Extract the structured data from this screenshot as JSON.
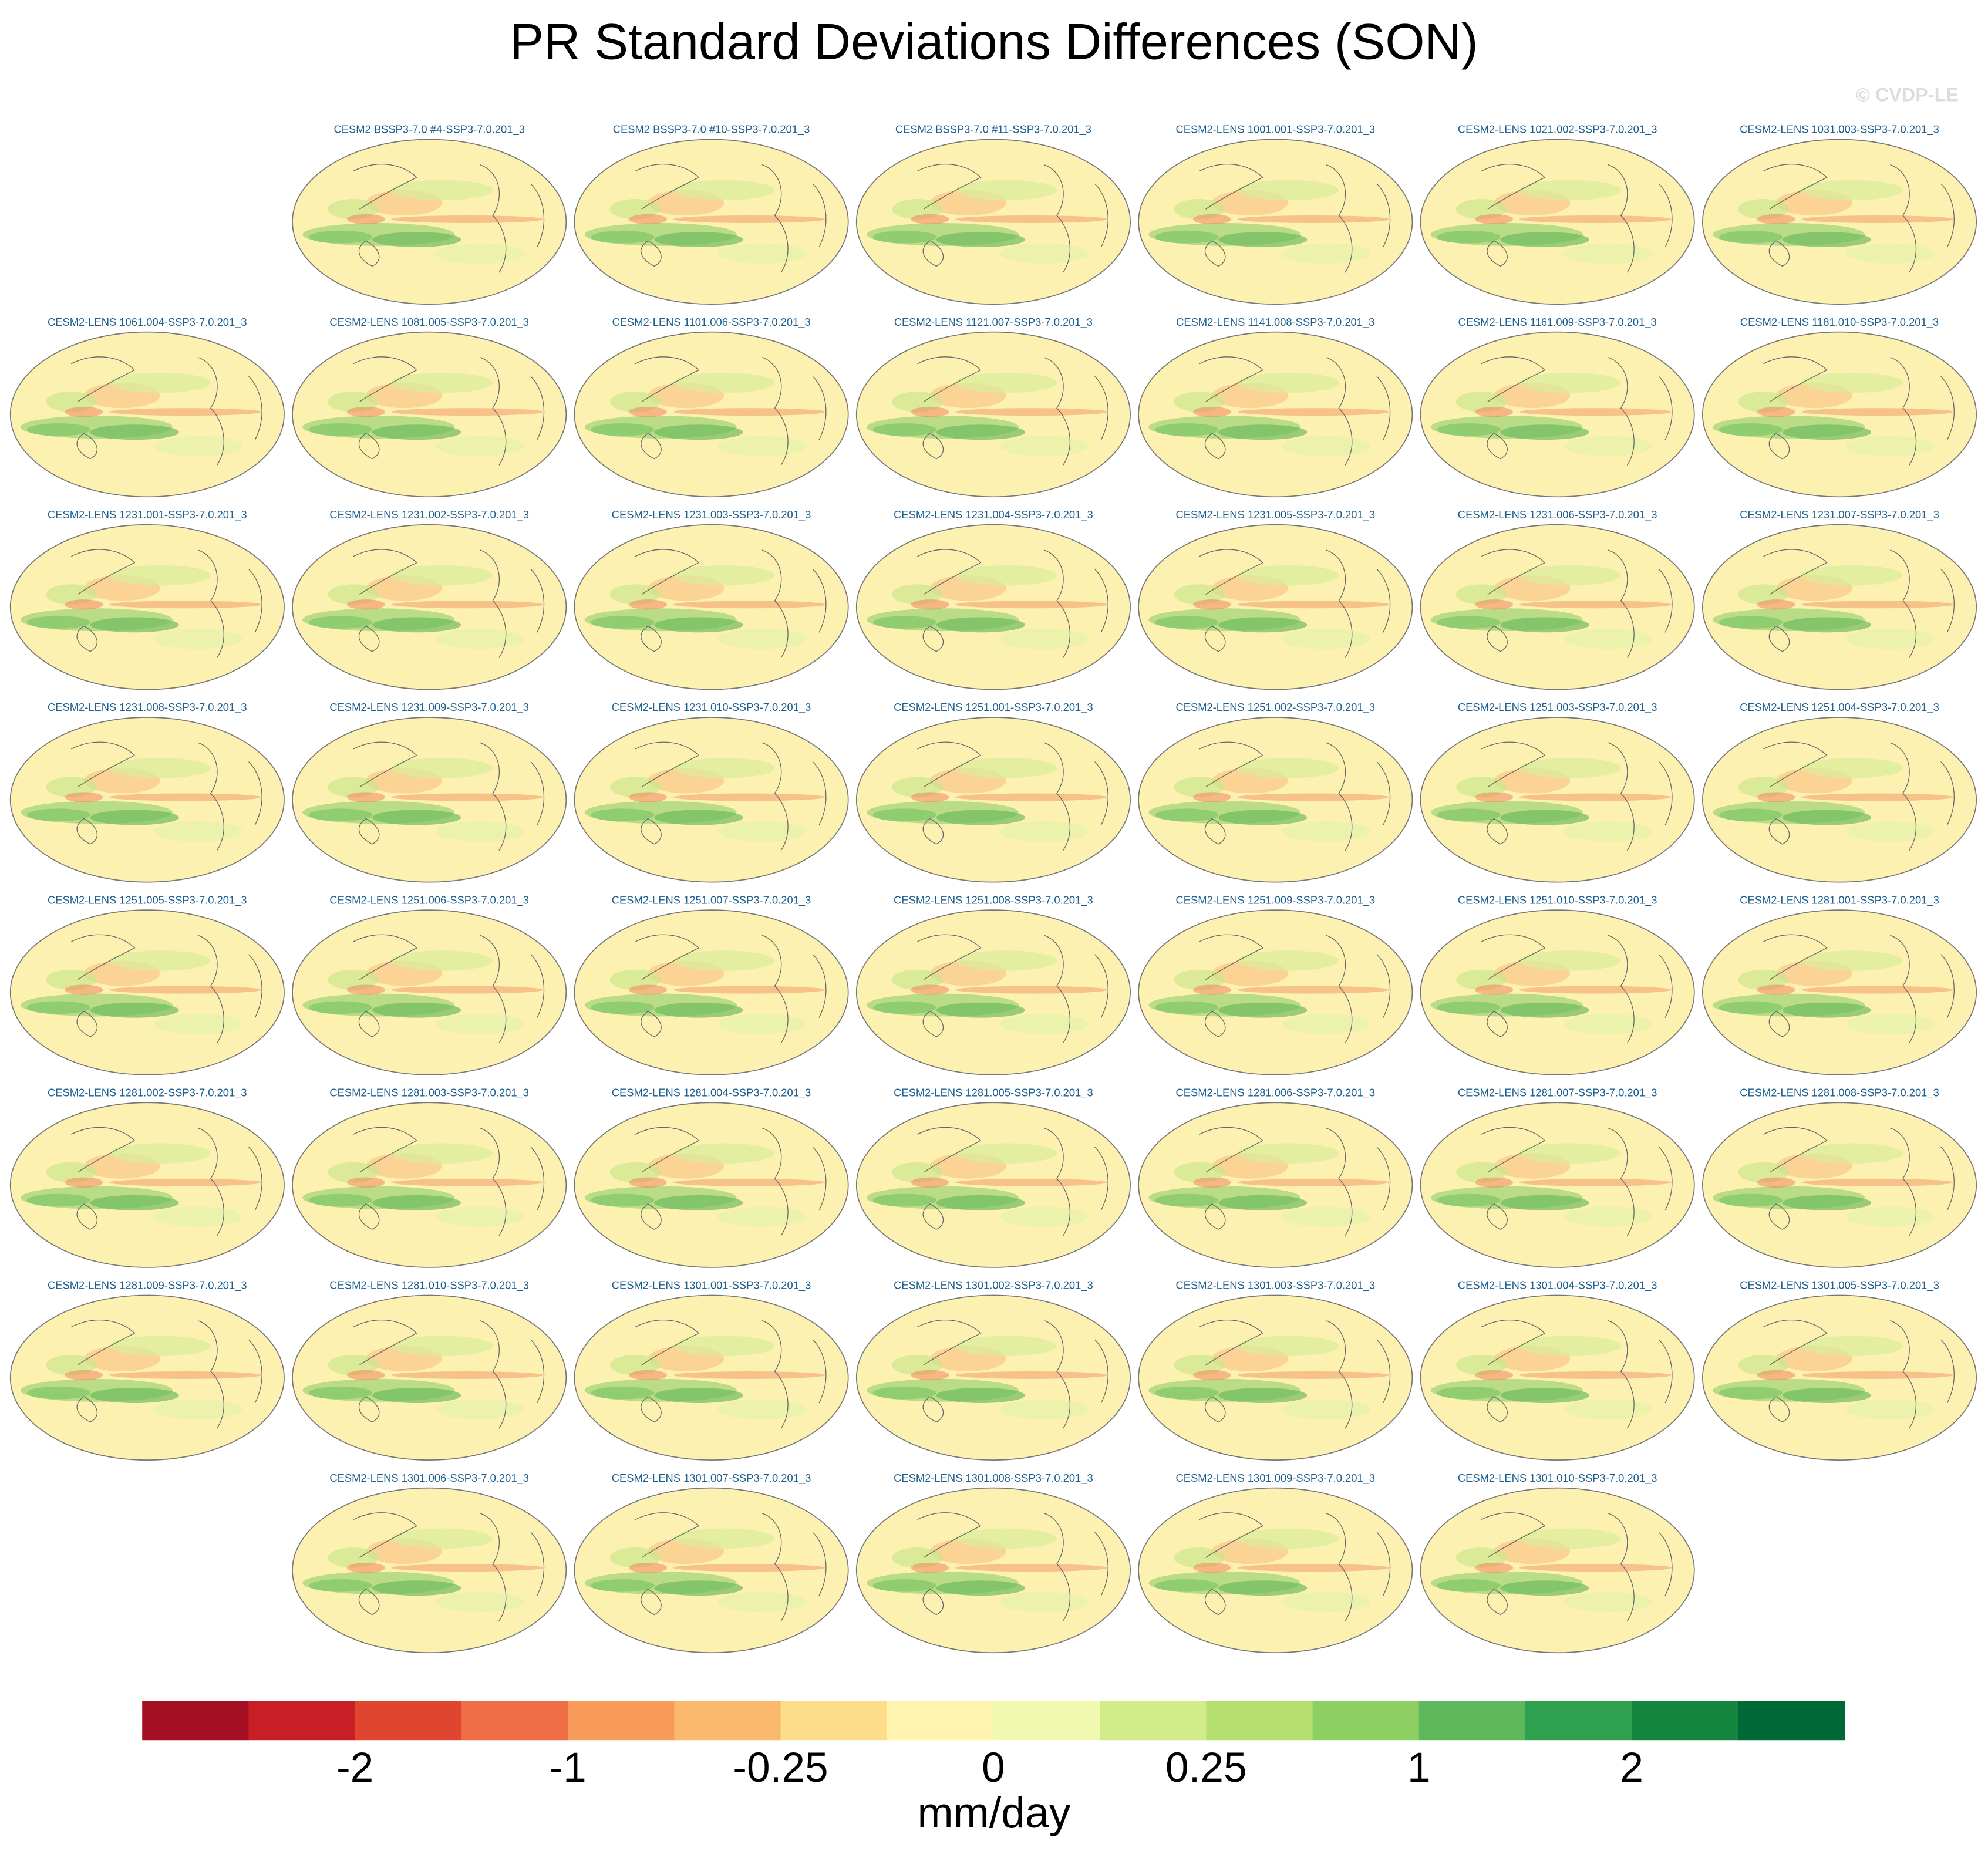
{
  "title": "PR Standard Deviations Differences (SON)",
  "watermark": "© CVDP-LE",
  "panels": [
    [
      "CESM2 BSSP3-7.0 #4-SSP3-7.0.201_3",
      "CESM2 BSSP3-7.0 #10-SSP3-7.0.201_3",
      "CESM2 BSSP3-7.0 #11-SSP3-7.0.201_3",
      "CESM2-LENS 1001.001-SSP3-7.0.201_3",
      "CESM2-LENS 1021.002-SSP3-7.0.201_3",
      "CESM2-LENS 1031.003-SSP3-7.0.201_3"
    ],
    [
      "CESM2-LENS 1061.004-SSP3-7.0.201_3",
      "CESM2-LENS 1081.005-SSP3-7.0.201_3",
      "CESM2-LENS 1101.006-SSP3-7.0.201_3",
      "CESM2-LENS 1121.007-SSP3-7.0.201_3",
      "CESM2-LENS 1141.008-SSP3-7.0.201_3",
      "CESM2-LENS 1161.009-SSP3-7.0.201_3",
      "CESM2-LENS 1181.010-SSP3-7.0.201_3"
    ],
    [
      "CESM2-LENS 1231.001-SSP3-7.0.201_3",
      "CESM2-LENS 1231.002-SSP3-7.0.201_3",
      "CESM2-LENS 1231.003-SSP3-7.0.201_3",
      "CESM2-LENS 1231.004-SSP3-7.0.201_3",
      "CESM2-LENS 1231.005-SSP3-7.0.201_3",
      "CESM2-LENS 1231.006-SSP3-7.0.201_3",
      "CESM2-LENS 1231.007-SSP3-7.0.201_3"
    ],
    [
      "CESM2-LENS 1231.008-SSP3-7.0.201_3",
      "CESM2-LENS 1231.009-SSP3-7.0.201_3",
      "CESM2-LENS 1231.010-SSP3-7.0.201_3",
      "CESM2-LENS 1251.001-SSP3-7.0.201_3",
      "CESM2-LENS 1251.002-SSP3-7.0.201_3",
      "CESM2-LENS 1251.003-SSP3-7.0.201_3",
      "CESM2-LENS 1251.004-SSP3-7.0.201_3"
    ],
    [
      "CESM2-LENS 1251.005-SSP3-7.0.201_3",
      "CESM2-LENS 1251.006-SSP3-7.0.201_3",
      "CESM2-LENS 1251.007-SSP3-7.0.201_3",
      "CESM2-LENS 1251.008-SSP3-7.0.201_3",
      "CESM2-LENS 1251.009-SSP3-7.0.201_3",
      "CESM2-LENS 1251.010-SSP3-7.0.201_3",
      "CESM2-LENS 1281.001-SSP3-7.0.201_3"
    ],
    [
      "CESM2-LENS 1281.002-SSP3-7.0.201_3",
      "CESM2-LENS 1281.003-SSP3-7.0.201_3",
      "CESM2-LENS 1281.004-SSP3-7.0.201_3",
      "CESM2-LENS 1281.005-SSP3-7.0.201_3",
      "CESM2-LENS 1281.006-SSP3-7.0.201_3",
      "CESM2-LENS 1281.007-SSP3-7.0.201_3",
      "CESM2-LENS 1281.008-SSP3-7.0.201_3"
    ],
    [
      "CESM2-LENS 1281.009-SSP3-7.0.201_3",
      "CESM2-LENS 1281.010-SSP3-7.0.201_3",
      "CESM2-LENS 1301.001-SSP3-7.0.201_3",
      "CESM2-LENS 1301.002-SSP3-7.0.201_3",
      "CESM2-LENS 1301.003-SSP3-7.0.201_3",
      "CESM2-LENS 1301.004-SSP3-7.0.201_3",
      "CESM2-LENS 1301.005-SSP3-7.0.201_3"
    ],
    [
      "CESM2-LENS 1301.006-SSP3-7.0.201_3",
      "CESM2-LENS 1301.007-SSP3-7.0.201_3",
      "CESM2-LENS 1301.008-SSP3-7.0.201_3",
      "CESM2-LENS 1301.009-SSP3-7.0.201_3",
      "CESM2-LENS 1301.010-SSP3-7.0.201_3"
    ]
  ],
  "colorbar": {
    "colors": [
      "#a50f24",
      "#c81f27",
      "#e04530",
      "#ef6e45",
      "#f89a5a",
      "#fbb96e",
      "#fddc8a",
      "#fff3b0",
      "#f1f8b0",
      "#d3ec8a",
      "#b5df6f",
      "#8ecf64",
      "#5eb85c",
      "#2fa04f",
      "#148640",
      "#006837"
    ],
    "ticks": [
      -2,
      -1,
      -0.25,
      0,
      0.25,
      1,
      2
    ],
    "label": "mm/day"
  }
}
